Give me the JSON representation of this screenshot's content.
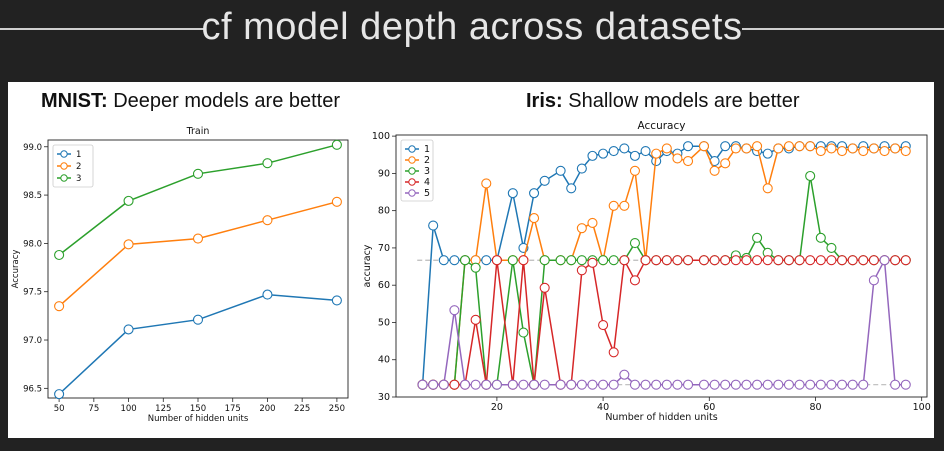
{
  "title": "cf model depth across datasets",
  "headings": {
    "mnist_name": "MNIST:",
    "mnist_text": " Deeper models are better",
    "iris_name": "Iris:",
    "iris_text": " Shallow models are better"
  },
  "colors": {
    "s1": "#1f77b4",
    "s2": "#ff7f0e",
    "s3": "#2ca02c",
    "s4": "#d62728",
    "s5": "#9467bd"
  },
  "chart_data": [
    {
      "type": "line",
      "title": "Train",
      "xlabel": "Number of hidden units",
      "ylabel": "Accuracy",
      "xlim": [
        42,
        258
      ],
      "ylim": [
        96.4,
        99.07
      ],
      "xticks": [
        50,
        75,
        100,
        125,
        150,
        175,
        200,
        225,
        250
      ],
      "yticks": [
        96.5,
        97.0,
        97.5,
        98.0,
        98.5,
        99.0
      ],
      "x": [
        50,
        100,
        150,
        200,
        250
      ],
      "legend": "top-left",
      "series": [
        {
          "name": "1",
          "values": [
            96.44,
            97.11,
            97.21,
            97.47,
            97.41
          ]
        },
        {
          "name": "2",
          "values": [
            97.35,
            97.99,
            98.05,
            98.24,
            98.43
          ]
        },
        {
          "name": "3",
          "values": [
            97.88,
            98.44,
            98.72,
            98.83,
            99.02
          ]
        }
      ]
    },
    {
      "type": "line",
      "title": "Accuracy",
      "xlabel": "Number of hidden units",
      "ylabel": "accuracy",
      "xlim": [
        1,
        101
      ],
      "ylim": [
        30,
        100.3
      ],
      "xticks": [
        20,
        40,
        60,
        80,
        100
      ],
      "yticks": [
        30,
        40,
        50,
        60,
        70,
        80,
        90,
        100
      ],
      "reference_line": 66.7,
      "x": [
        6,
        8,
        10,
        12,
        14,
        16,
        18,
        20,
        23,
        25,
        27,
        29,
        32,
        34,
        36,
        38,
        40,
        42,
        44,
        46,
        48,
        50,
        52,
        54,
        56,
        59,
        61,
        63,
        65,
        67,
        69,
        71,
        73,
        75,
        77,
        79,
        81,
        83,
        85,
        87,
        89,
        91,
        93,
        95,
        97
      ],
      "legend": "top-left",
      "series": [
        {
          "name": "1",
          "values": [
            33.3,
            76,
            66.7,
            66.7,
            66.7,
            66.7,
            66.7,
            66.7,
            84.7,
            70,
            84.7,
            88,
            90.7,
            86,
            91.3,
            94.7,
            95.3,
            96,
            96.7,
            94.7,
            96,
            93.3,
            96,
            95.3,
            97.3,
            97.3,
            93.3,
            97.3,
            97.3,
            96.7,
            96,
            95.3,
            96.7,
            96.7,
            97.3,
            97.3,
            97.3,
            97.3,
            97.3,
            96.7,
            97.3,
            96.7,
            97.3,
            96.7,
            97.3
          ]
        },
        {
          "name": "2",
          "values": [
            33.3,
            33.3,
            33.3,
            33.3,
            66.7,
            66.7,
            87.3,
            66.7,
            66.7,
            66.7,
            78,
            66.7,
            66.7,
            66.7,
            75.3,
            76.7,
            66.7,
            81.3,
            81.3,
            90.7,
            66.7,
            95.3,
            96.7,
            94,
            93.3,
            97.3,
            90.7,
            92.7,
            96.7,
            96.7,
            97.3,
            86,
            96.7,
            97.3,
            97.3,
            97.3,
            96,
            96.7,
            96,
            96.7,
            96,
            96.7,
            96,
            96.7,
            96
          ]
        },
        {
          "name": "3",
          "values": [
            33.3,
            33.3,
            33.3,
            33.3,
            66.7,
            64.7,
            33.3,
            33.3,
            66.7,
            47.3,
            33.3,
            66.7,
            66.7,
            66.7,
            66.7,
            66.7,
            66.7,
            66.7,
            66.7,
            71.3,
            66.7,
            66.7,
            66.7,
            66.7,
            66.7,
            66.7,
            66.7,
            66.7,
            68,
            67.3,
            72.7,
            68.7,
            66.7,
            66.7,
            66.7,
            89.3,
            72.7,
            70,
            66.7,
            66.7,
            66.7,
            66.7,
            66.7,
            66.7,
            66.7
          ]
        },
        {
          "name": "4",
          "values": [
            33.3,
            33.3,
            33.3,
            33.3,
            33.3,
            50.7,
            33.3,
            66.7,
            33.3,
            66.7,
            33.3,
            59.3,
            33.3,
            33.3,
            64,
            66,
            49.3,
            42,
            66.7,
            61.3,
            66.7,
            66.7,
            66.7,
            66.7,
            66.7,
            66.7,
            66.7,
            66.7,
            66.7,
            66.7,
            66.7,
            66.7,
            66.7,
            66.7,
            66.7,
            66.7,
            66.7,
            66.7,
            66.7,
            66.7,
            66.7,
            66.7,
            66.7,
            66.7,
            66.7
          ]
        },
        {
          "name": "5",
          "values": [
            33.3,
            33.3,
            33.3,
            53.3,
            33.3,
            33.3,
            33.3,
            33.3,
            33.3,
            33.3,
            33.3,
            33.3,
            33.3,
            33.3,
            33.3,
            33.3,
            33.3,
            33.3,
            36,
            33.3,
            33.3,
            33.3,
            33.3,
            33.3,
            33.3,
            33.3,
            33.3,
            33.3,
            33.3,
            33.3,
            33.3,
            33.3,
            33.3,
            33.3,
            33.3,
            33.3,
            33.3,
            33.3,
            33.3,
            33.3,
            33.3,
            61.3,
            66.7,
            33.3,
            33.3
          ]
        }
      ]
    }
  ]
}
